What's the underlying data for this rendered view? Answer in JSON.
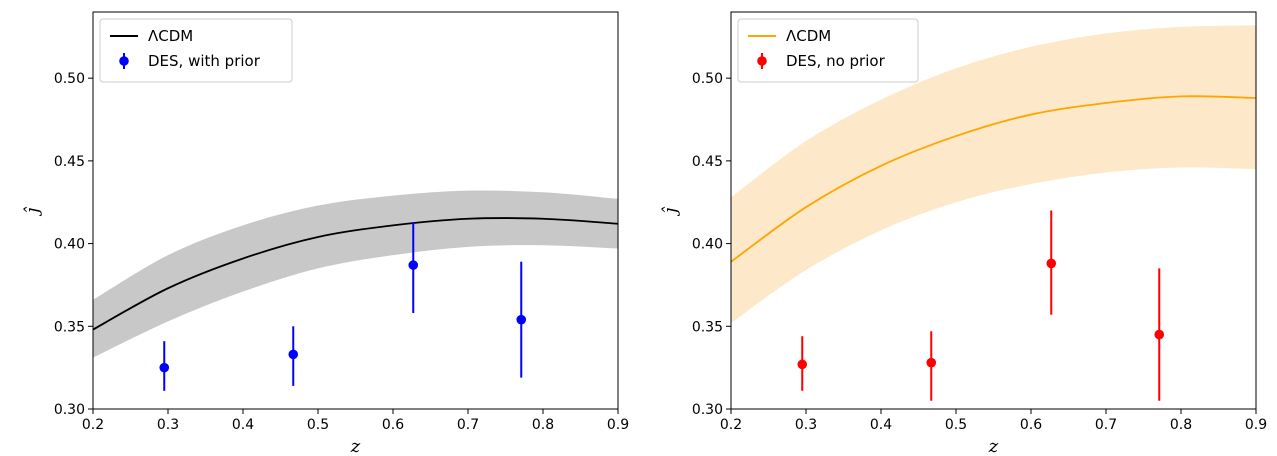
{
  "chart_data": [
    {
      "type": "line",
      "xlabel": "z",
      "ylabel": "ĵ",
      "xlim": [
        0.2,
        0.9
      ],
      "ylim": [
        0.3,
        0.54
      ],
      "xticks": [
        "0.2",
        "0.3",
        "0.4",
        "0.5",
        "0.6",
        "0.7",
        "0.8",
        "0.9"
      ],
      "yticks": [
        "0.30",
        "0.35",
        "0.40",
        "0.45",
        "0.50"
      ],
      "grid": false,
      "legend_position": "top-left",
      "model": {
        "name": "ΛCDM",
        "color": "#000000",
        "band_color": "#c8c8c8",
        "x": [
          0.2,
          0.3,
          0.4,
          0.5,
          0.6,
          0.7,
          0.8,
          0.9
        ],
        "y": [
          0.348,
          0.373,
          0.391,
          0.404,
          0.411,
          0.415,
          0.415,
          0.412
        ],
        "lower": [
          0.331,
          0.353,
          0.371,
          0.385,
          0.393,
          0.398,
          0.399,
          0.397
        ],
        "upper": [
          0.366,
          0.393,
          0.411,
          0.423,
          0.429,
          0.432,
          0.431,
          0.427
        ]
      },
      "data_series": {
        "name": "DES, with prior",
        "color": "#0000ff",
        "x": [
          0.295,
          0.467,
          0.627,
          0.771
        ],
        "y": [
          0.325,
          0.333,
          0.387,
          0.354
        ],
        "err_low": [
          0.311,
          0.314,
          0.358,
          0.319
        ],
        "err_high": [
          0.341,
          0.35,
          0.413,
          0.389
        ]
      }
    },
    {
      "type": "line",
      "xlabel": "z",
      "ylabel": "ĵ",
      "xlim": [
        0.2,
        0.9
      ],
      "ylim": [
        0.3,
        0.54
      ],
      "xticks": [
        "0.2",
        "0.3",
        "0.4",
        "0.5",
        "0.6",
        "0.7",
        "0.8",
        "0.9"
      ],
      "yticks": [
        "0.30",
        "0.35",
        "0.40",
        "0.45",
        "0.50"
      ],
      "grid": false,
      "legend_position": "top-left",
      "model": {
        "name": "ΛCDM",
        "color": "#ffa500",
        "band_color": "#fde9c9",
        "x": [
          0.2,
          0.3,
          0.4,
          0.5,
          0.6,
          0.7,
          0.8,
          0.9
        ],
        "y": [
          0.389,
          0.422,
          0.447,
          0.465,
          0.478,
          0.485,
          0.489,
          0.488
        ],
        "lower": [
          0.352,
          0.384,
          0.408,
          0.425,
          0.436,
          0.443,
          0.446,
          0.445
        ],
        "upper": [
          0.428,
          0.462,
          0.487,
          0.506,
          0.519,
          0.527,
          0.531,
          0.532
        ]
      },
      "data_series": {
        "name": "DES, no prior",
        "color": "#ff0000",
        "x": [
          0.295,
          0.467,
          0.627,
          0.771
        ],
        "y": [
          0.327,
          0.328,
          0.388,
          0.345
        ],
        "err_low": [
          0.311,
          0.305,
          0.357,
          0.305
        ],
        "err_high": [
          0.344,
          0.347,
          0.42,
          0.385
        ]
      }
    }
  ]
}
